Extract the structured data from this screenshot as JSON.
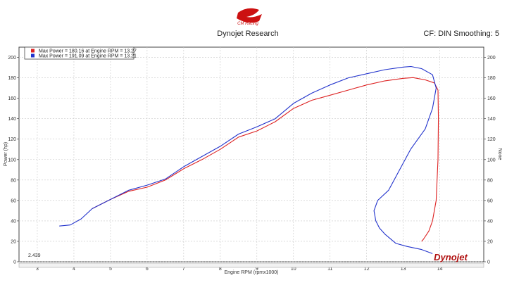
{
  "header": {
    "logo_text": "CM Racing",
    "brand": "Dynojet Research",
    "info": "CF: DIN Smoothing: 5",
    "watermark": "Dynojet"
  },
  "corner_readout": "2.439",
  "chart_data": {
    "type": "line",
    "xlabel": "Engine RPM (rpmx1000)",
    "ylabel": "Power (hp)",
    "y2label": "None",
    "xlim": [
      2.5,
      15.2
    ],
    "ylim": [
      0,
      210
    ],
    "xticks": [
      3,
      4,
      5,
      6,
      7,
      8,
      9,
      10,
      11,
      12,
      13,
      14
    ],
    "yticks": [
      0,
      20,
      40,
      60,
      80,
      100,
      120,
      140,
      160,
      180,
      200
    ],
    "grid": true,
    "legend_position": "top-left",
    "series": [
      {
        "name": "Max Power = 180.16 at Engine RPM = 13.27",
        "color": "#dd2222",
        "x": [
          4.5,
          5.0,
          5.5,
          6.0,
          6.5,
          7.0,
          7.5,
          8.0,
          8.5,
          9.0,
          9.5,
          10.0,
          10.5,
          11.0,
          11.5,
          12.0,
          12.5,
          13.0,
          13.27,
          13.6,
          13.85,
          13.95,
          13.96,
          13.95,
          13.9,
          13.8,
          13.7,
          13.55,
          13.5
        ],
        "y": [
          52,
          61,
          69,
          73,
          80,
          91,
          100,
          110,
          122,
          128,
          137,
          150,
          158,
          163,
          168,
          173,
          177,
          179.5,
          180.16,
          178,
          175,
          168,
          140,
          100,
          60,
          40,
          30,
          22,
          20
        ]
      },
      {
        "name": "Max Power = 191.09 at Engine RPM = 13.21",
        "color": "#2233cc",
        "x": [
          3.6,
          3.9,
          4.2,
          4.5,
          5.0,
          5.5,
          6.0,
          6.5,
          7.0,
          7.5,
          8.0,
          8.5,
          9.0,
          9.5,
          10.0,
          10.5,
          11.0,
          11.5,
          12.0,
          12.5,
          13.0,
          13.21,
          13.5,
          13.8,
          13.9,
          13.8,
          13.6,
          13.2,
          12.9,
          12.6,
          12.3,
          12.2,
          12.25,
          12.35,
          12.5,
          12.8,
          13.1,
          13.5,
          13.8
        ],
        "y": [
          35,
          36,
          42,
          52,
          61,
          70,
          75,
          81,
          93,
          103,
          113,
          125,
          132,
          140,
          155,
          165,
          173,
          180,
          184,
          188,
          190.5,
          191.09,
          189,
          183,
          170,
          150,
          130,
          110,
          90,
          70,
          60,
          50,
          40,
          33,
          27,
          18,
          15,
          12,
          8
        ]
      }
    ]
  }
}
